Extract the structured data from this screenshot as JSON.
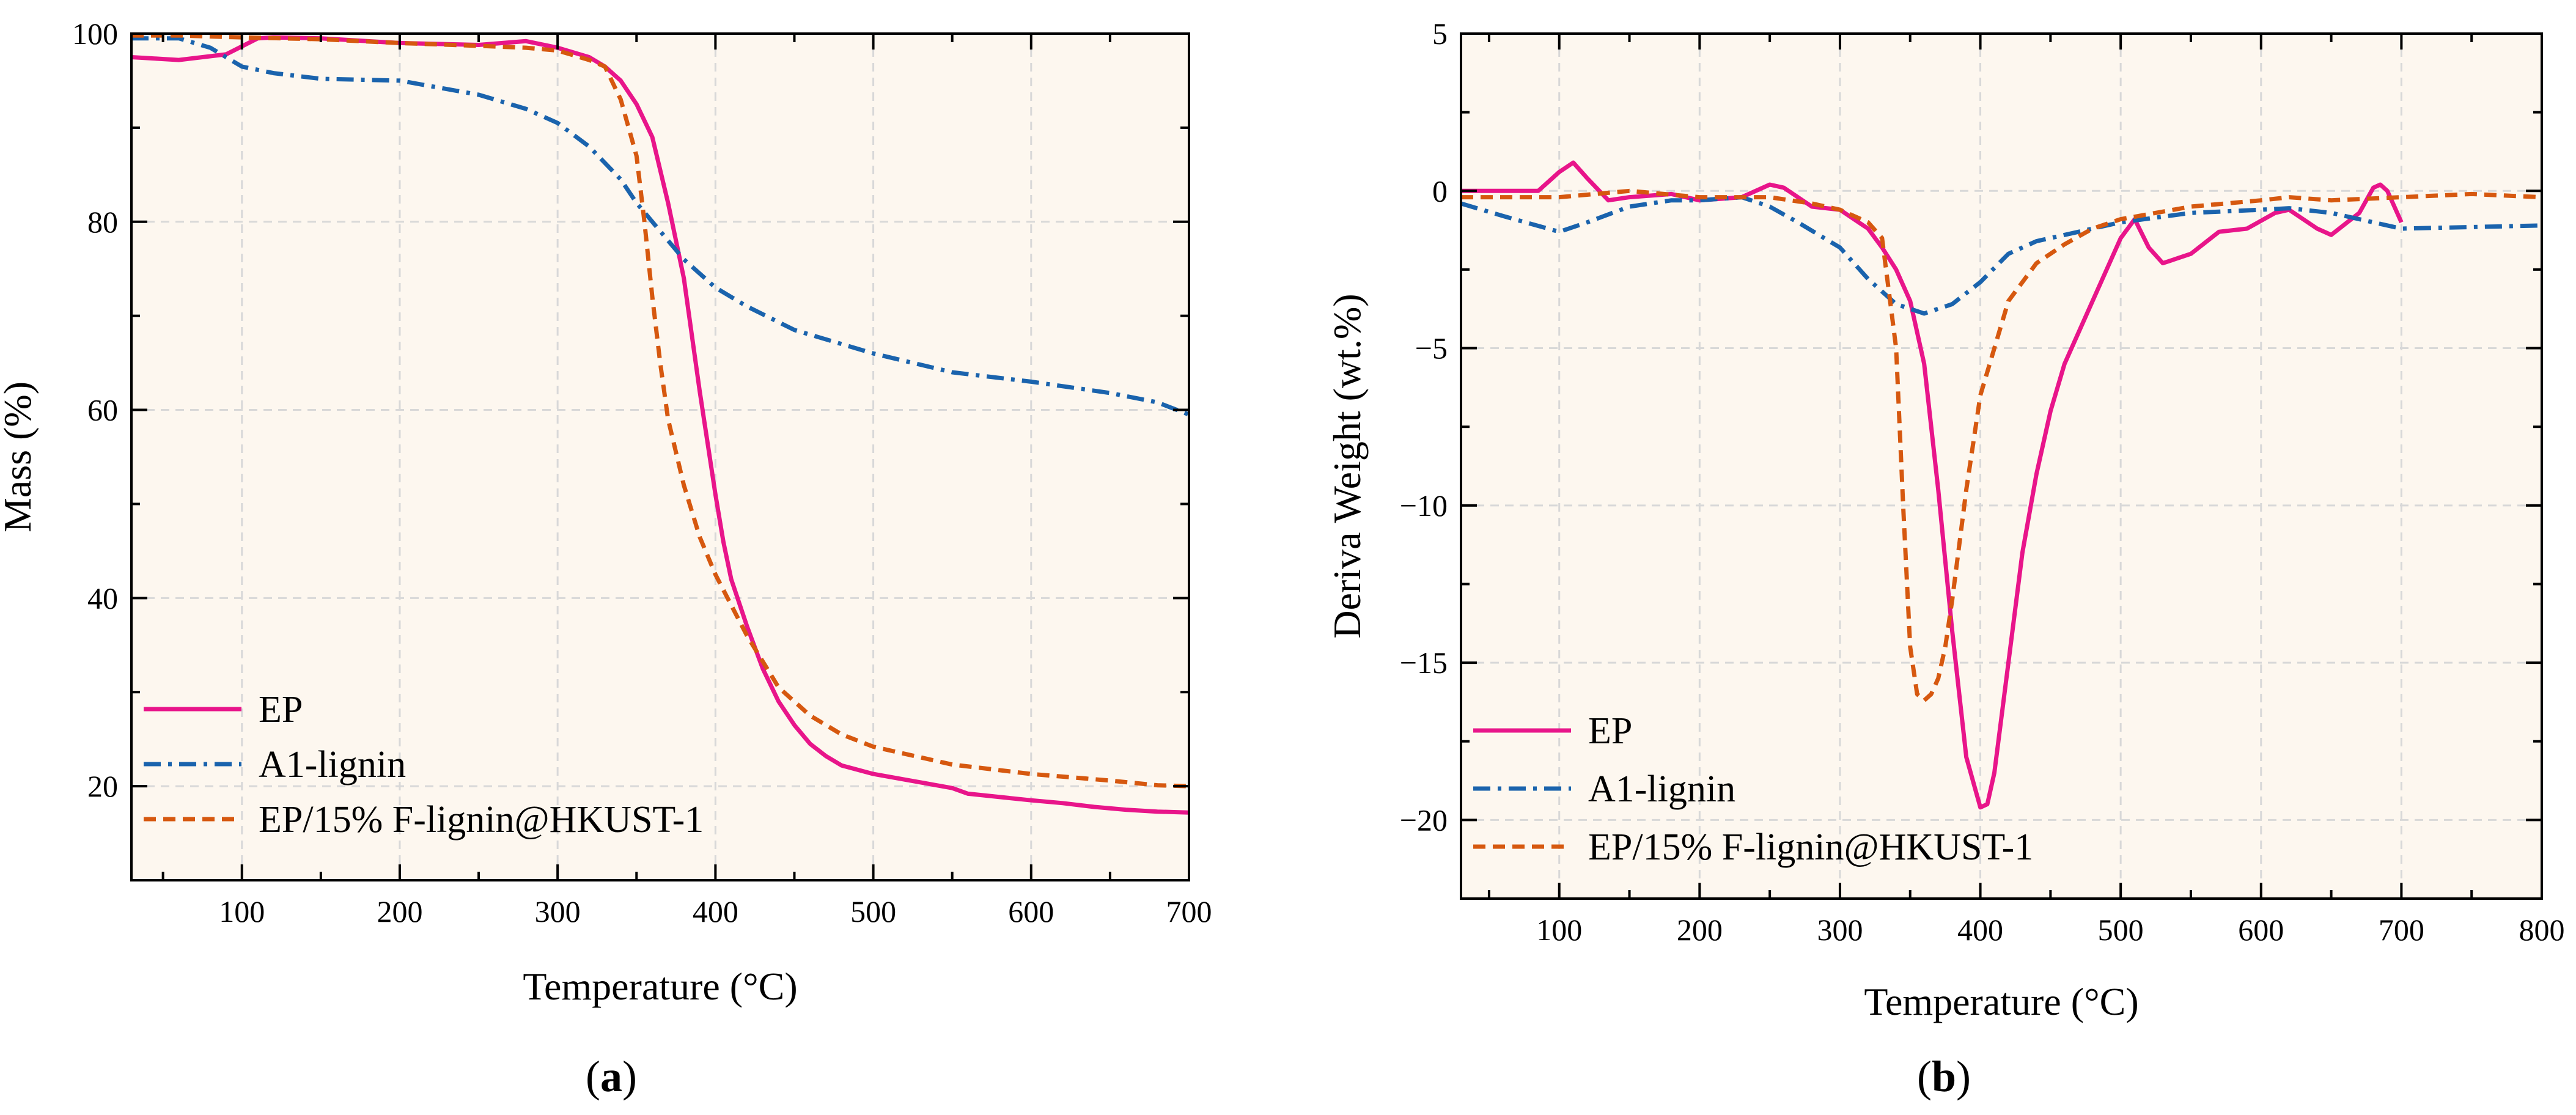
{
  "colors": {
    "plot_background": "#fdf7ef",
    "grid": "#d8d8d8",
    "axis": "#000000",
    "EP": "#e8158a",
    "A1-lignin": "#1a63ad",
    "EP/15% F-lignin@HKUST-1": "#d6580f"
  },
  "chart_data": [
    {
      "id": "a",
      "type": "line",
      "caption": "(a)",
      "caption_paren_open": "(",
      "caption_letter": "a",
      "caption_paren_close": ")",
      "title": "",
      "xlabel": "Temperature (°C)",
      "ylabel": "Mass (%)",
      "xlim": [
        30,
        700
      ],
      "ylim": [
        10,
        100
      ],
      "xticks": [
        100,
        200,
        300,
        400,
        500,
        600,
        700
      ],
      "yticks": [
        20,
        40,
        60,
        80,
        100
      ],
      "grid": true,
      "legend_position": "bottom-left",
      "legend": [
        "EP",
        "A1-lignin",
        "EP/15% F-lignin@HKUST-1"
      ],
      "series": [
        {
          "name": "EP",
          "style": "solid",
          "x": [
            30,
            60,
            90,
            110,
            120,
            150,
            200,
            250,
            280,
            300,
            320,
            330,
            340,
            350,
            360,
            370,
            380,
            390,
            400,
            405,
            410,
            420,
            430,
            440,
            450,
            460,
            470,
            480,
            500,
            520,
            550,
            560,
            600,
            620,
            640,
            660,
            680,
            700
          ],
          "values": [
            97.5,
            97.2,
            97.8,
            99.5,
            99.6,
            99.5,
            99.0,
            98.8,
            99.2,
            98.5,
            97.5,
            96.5,
            95.0,
            92.5,
            89.0,
            82.0,
            74.0,
            62.0,
            51.0,
            46.0,
            42.0,
            37.0,
            32.5,
            29.0,
            26.5,
            24.5,
            23.2,
            22.2,
            21.3,
            20.7,
            19.8,
            19.2,
            18.5,
            18.2,
            17.8,
            17.5,
            17.3,
            17.2
          ]
        },
        {
          "name": "A1-lignin",
          "style": "dashdot",
          "x": [
            30,
            60,
            80,
            100,
            120,
            150,
            200,
            250,
            280,
            300,
            320,
            340,
            350,
            360,
            380,
            400,
            420,
            450,
            500,
            550,
            600,
            650,
            680,
            700
          ],
          "values": [
            99.5,
            99.5,
            98.5,
            96.5,
            95.8,
            95.2,
            95.0,
            93.5,
            92.0,
            90.5,
            88.0,
            84.5,
            82.0,
            80.0,
            76.0,
            73.0,
            71.0,
            68.5,
            66.0,
            64.0,
            63.0,
            61.8,
            60.8,
            59.5
          ]
        },
        {
          "name": "EP/15% F-lignin@HKUST-1",
          "style": "dashed",
          "x": [
            30,
            60,
            100,
            150,
            200,
            250,
            280,
            300,
            320,
            330,
            340,
            350,
            355,
            360,
            365,
            370,
            380,
            390,
            400,
            420,
            440,
            460,
            480,
            500,
            550,
            600,
            650,
            680,
            700
          ],
          "values": [
            99.8,
            99.8,
            99.6,
            99.4,
            99.0,
            98.7,
            98.5,
            98.2,
            97.2,
            96.5,
            93.0,
            87.0,
            80.0,
            72.0,
            65.0,
            59.0,
            52.0,
            46.5,
            42.5,
            36.0,
            30.5,
            27.5,
            25.5,
            24.2,
            22.3,
            21.3,
            20.6,
            20.1,
            20.0
          ]
        }
      ]
    },
    {
      "id": "b",
      "type": "line",
      "caption": "(b)",
      "caption_paren_open": "(",
      "caption_letter": "b",
      "caption_paren_close": ")",
      "title": "",
      "xlabel": "Temperature (°C)",
      "ylabel": "Deriva Weight (wt.%)",
      "xlim": [
        30,
        800
      ],
      "ylim": [
        -22.5,
        5
      ],
      "xticks": [
        100,
        200,
        300,
        400,
        500,
        600,
        700,
        800
      ],
      "yticks": [
        -20,
        -15,
        -10,
        -5,
        0,
        5
      ],
      "ytick_labels": [
        "−20",
        "−15",
        "−10",
        "−5",
        "0",
        "5"
      ],
      "grid": true,
      "legend_position": "bottom-left",
      "legend": [
        "EP",
        "A1-lignin",
        "EP/15% F-lignin@HKUST-1"
      ],
      "series": [
        {
          "name": "EP",
          "style": "solid",
          "x": [
            30,
            60,
            85,
            100,
            110,
            120,
            135,
            150,
            180,
            200,
            230,
            250,
            260,
            280,
            300,
            320,
            330,
            340,
            350,
            360,
            370,
            380,
            390,
            400,
            405,
            410,
            420,
            430,
            440,
            450,
            460,
            480,
            500,
            510,
            520,
            530,
            550,
            570,
            590,
            610,
            620,
            640,
            650,
            670,
            680,
            685,
            690,
            700
          ],
          "values": [
            0.0,
            0.0,
            0.0,
            0.6,
            0.9,
            0.4,
            -0.3,
            -0.2,
            -0.1,
            -0.3,
            -0.2,
            0.2,
            0.1,
            -0.5,
            -0.6,
            -1.2,
            -1.8,
            -2.5,
            -3.5,
            -5.5,
            -9.5,
            -14.0,
            -18.0,
            -19.6,
            -19.5,
            -18.5,
            -15.0,
            -11.5,
            -9.0,
            -7.0,
            -5.5,
            -3.5,
            -1.5,
            -0.9,
            -1.8,
            -2.3,
            -2.0,
            -1.3,
            -1.2,
            -0.7,
            -0.6,
            -1.2,
            -1.4,
            -0.7,
            0.1,
            0.2,
            0.0,
            -1.0
          ]
        },
        {
          "name": "A1-lignin",
          "style": "dashdot",
          "x": [
            30,
            60,
            100,
            120,
            150,
            180,
            200,
            230,
            250,
            270,
            300,
            320,
            340,
            360,
            380,
            400,
            420,
            440,
            460,
            480,
            500,
            550,
            600,
            620,
            650,
            700,
            750,
            800
          ],
          "values": [
            -0.4,
            -0.8,
            -1.3,
            -1.0,
            -0.5,
            -0.3,
            -0.3,
            -0.2,
            -0.5,
            -1.0,
            -1.8,
            -2.8,
            -3.6,
            -3.9,
            -3.6,
            -2.9,
            -2.0,
            -1.6,
            -1.4,
            -1.2,
            -1.0,
            -0.7,
            -0.6,
            -0.55,
            -0.7,
            -1.2,
            -1.15,
            -1.1
          ]
        },
        {
          "name": "EP/15% F-lignin@HKUST-1",
          "style": "dashed",
          "x": [
            30,
            60,
            100,
            150,
            200,
            250,
            280,
            300,
            320,
            330,
            340,
            345,
            350,
            355,
            360,
            365,
            370,
            375,
            380,
            390,
            400,
            420,
            440,
            460,
            480,
            500,
            550,
            600,
            620,
            650,
            700,
            750,
            800
          ],
          "values": [
            -0.2,
            -0.2,
            -0.2,
            0.0,
            -0.2,
            -0.2,
            -0.4,
            -0.6,
            -1.0,
            -1.5,
            -5.0,
            -10.0,
            -14.5,
            -16.0,
            -16.2,
            -16.0,
            -15.5,
            -14.5,
            -13.0,
            -9.5,
            -6.5,
            -3.5,
            -2.3,
            -1.7,
            -1.2,
            -0.9,
            -0.5,
            -0.3,
            -0.2,
            -0.3,
            -0.2,
            -0.1,
            -0.2
          ]
        }
      ]
    }
  ]
}
